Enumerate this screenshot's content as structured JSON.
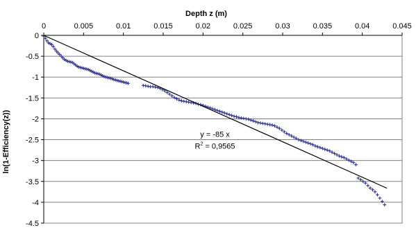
{
  "chart_data": {
    "type": "scatter",
    "title": "",
    "xlabel": "Depth z (m)",
    "ylabel": "ln(1-Efficiency(z))",
    "xlim": [
      0,
      0.045
    ],
    "ylim": [
      -4.5,
      0
    ],
    "x_ticks": [
      0,
      0.005,
      0.01,
      0.015,
      0.02,
      0.025,
      0.03,
      0.035,
      0.04,
      0.045
    ],
    "x_tick_labels": [
      "0",
      "0.005",
      "0.01",
      "0.015",
      "0.02",
      "0.025",
      "0.03",
      "0.035",
      "0.04",
      "0.045"
    ],
    "y_ticks": [
      0,
      -0.5,
      -1,
      -1.5,
      -2,
      -2.5,
      -3,
      -3.5,
      -4,
      -4.5
    ],
    "y_tick_labels": [
      "0",
      "-0.5",
      "-1",
      "-1.5",
      "-2",
      "-2.5",
      "-3",
      "-3.5",
      "-4",
      "-4.5"
    ],
    "x_axis_position": "top",
    "grid": "horizontal",
    "legend": "none",
    "colors": {
      "points": "#2a2f8f",
      "trendline": "#000000",
      "grid": "#808080"
    },
    "series": [
      {
        "marker": "plus",
        "points": [
          [
            0.0,
            -0.02
          ],
          [
            0.0002,
            -0.07
          ],
          [
            0.0004,
            -0.13
          ],
          [
            0.0006,
            -0.18
          ],
          [
            0.0008,
            -0.2
          ],
          [
            0.001,
            -0.22
          ],
          [
            0.0012,
            -0.27
          ],
          [
            0.0014,
            -0.33
          ],
          [
            0.0016,
            -0.38
          ],
          [
            0.0018,
            -0.42
          ],
          [
            0.002,
            -0.46
          ],
          [
            0.0022,
            -0.5
          ],
          [
            0.0024,
            -0.54
          ],
          [
            0.0026,
            -0.58
          ],
          [
            0.0028,
            -0.6
          ],
          [
            0.003,
            -0.62
          ],
          [
            0.0032,
            -0.63
          ],
          [
            0.0034,
            -0.64
          ],
          [
            0.0036,
            -0.65
          ],
          [
            0.0038,
            -0.68
          ],
          [
            0.004,
            -0.71
          ],
          [
            0.0042,
            -0.74
          ],
          [
            0.0044,
            -0.76
          ],
          [
            0.0046,
            -0.77
          ],
          [
            0.0048,
            -0.78
          ],
          [
            0.005,
            -0.79
          ],
          [
            0.0052,
            -0.8
          ],
          [
            0.0054,
            -0.81
          ],
          [
            0.0056,
            -0.82
          ],
          [
            0.0058,
            -0.84
          ],
          [
            0.006,
            -0.86
          ],
          [
            0.0062,
            -0.88
          ],
          [
            0.0064,
            -0.9
          ],
          [
            0.0066,
            -0.91
          ],
          [
            0.0068,
            -0.92
          ],
          [
            0.007,
            -0.93
          ],
          [
            0.0072,
            -0.95
          ],
          [
            0.0074,
            -0.97
          ],
          [
            0.0076,
            -0.99
          ],
          [
            0.0078,
            -1.0
          ],
          [
            0.008,
            -1.01
          ],
          [
            0.0082,
            -1.02
          ],
          [
            0.0084,
            -1.03
          ],
          [
            0.0086,
            -1.04
          ],
          [
            0.0088,
            -1.06
          ],
          [
            0.009,
            -1.07
          ],
          [
            0.0092,
            -1.08
          ],
          [
            0.0094,
            -1.09
          ],
          [
            0.0096,
            -1.1
          ],
          [
            0.0098,
            -1.11
          ],
          [
            0.01,
            -1.12
          ],
          [
            0.0102,
            -1.13
          ],
          [
            0.0104,
            -1.14
          ],
          [
            0.0106,
            -1.15
          ],
          [
            0.0125,
            -1.2
          ],
          [
            0.0128,
            -1.21
          ],
          [
            0.0131,
            -1.22
          ],
          [
            0.0134,
            -1.23
          ],
          [
            0.0137,
            -1.23
          ],
          [
            0.014,
            -1.24
          ],
          [
            0.0143,
            -1.25
          ],
          [
            0.0146,
            -1.27
          ],
          [
            0.0149,
            -1.3
          ],
          [
            0.0152,
            -1.33
          ],
          [
            0.0155,
            -1.37
          ],
          [
            0.0158,
            -1.41
          ],
          [
            0.0161,
            -1.45
          ],
          [
            0.0164,
            -1.49
          ],
          [
            0.0167,
            -1.52
          ],
          [
            0.017,
            -1.55
          ],
          [
            0.0173,
            -1.57
          ],
          [
            0.0176,
            -1.58
          ],
          [
            0.0179,
            -1.59
          ],
          [
            0.0182,
            -1.6
          ],
          [
            0.0185,
            -1.61
          ],
          [
            0.0188,
            -1.62
          ],
          [
            0.0191,
            -1.63
          ],
          [
            0.0194,
            -1.65
          ],
          [
            0.0197,
            -1.66
          ],
          [
            0.02,
            -1.68
          ],
          [
            0.0203,
            -1.7
          ],
          [
            0.0206,
            -1.72
          ],
          [
            0.0209,
            -1.74
          ],
          [
            0.0212,
            -1.76
          ],
          [
            0.0215,
            -1.78
          ],
          [
            0.0218,
            -1.8
          ],
          [
            0.0221,
            -1.82
          ],
          [
            0.0224,
            -1.84
          ],
          [
            0.0227,
            -1.86
          ],
          [
            0.023,
            -1.88
          ],
          [
            0.0233,
            -1.9
          ],
          [
            0.0236,
            -1.92
          ],
          [
            0.0239,
            -1.94
          ],
          [
            0.0242,
            -1.95
          ],
          [
            0.0245,
            -1.97
          ],
          [
            0.0248,
            -1.98
          ],
          [
            0.0251,
            -1.99
          ],
          [
            0.0254,
            -2.0
          ],
          [
            0.0257,
            -2.01
          ],
          [
            0.026,
            -2.03
          ],
          [
            0.0263,
            -2.05
          ],
          [
            0.0266,
            -2.07
          ],
          [
            0.0269,
            -2.09
          ],
          [
            0.0272,
            -2.1
          ],
          [
            0.0275,
            -2.11
          ],
          [
            0.0278,
            -2.12
          ],
          [
            0.0281,
            -2.13
          ],
          [
            0.0284,
            -2.14
          ],
          [
            0.0287,
            -2.15
          ],
          [
            0.029,
            -2.17
          ],
          [
            0.0293,
            -2.2
          ],
          [
            0.0296,
            -2.23
          ],
          [
            0.0299,
            -2.27
          ],
          [
            0.0302,
            -2.31
          ],
          [
            0.0305,
            -2.35
          ],
          [
            0.0308,
            -2.38
          ],
          [
            0.0311,
            -2.41
          ],
          [
            0.0314,
            -2.44
          ],
          [
            0.0317,
            -2.47
          ],
          [
            0.032,
            -2.5
          ],
          [
            0.0323,
            -2.52
          ],
          [
            0.0326,
            -2.54
          ],
          [
            0.0329,
            -2.56
          ],
          [
            0.0332,
            -2.58
          ],
          [
            0.0335,
            -2.6
          ],
          [
            0.0338,
            -2.62
          ],
          [
            0.0341,
            -2.65
          ],
          [
            0.0344,
            -2.67
          ],
          [
            0.0347,
            -2.69
          ],
          [
            0.035,
            -2.71
          ],
          [
            0.0353,
            -2.73
          ],
          [
            0.0356,
            -2.75
          ],
          [
            0.0359,
            -2.77
          ],
          [
            0.0362,
            -2.8
          ],
          [
            0.0365,
            -2.83
          ],
          [
            0.0368,
            -2.86
          ],
          [
            0.0371,
            -2.89
          ],
          [
            0.0374,
            -2.91
          ],
          [
            0.0377,
            -2.93
          ],
          [
            0.038,
            -2.96
          ],
          [
            0.0383,
            -2.99
          ],
          [
            0.0386,
            -3.02
          ],
          [
            0.0389,
            -3.05
          ],
          [
            0.0392,
            -3.1
          ],
          [
            0.0395,
            -3.42
          ],
          [
            0.0398,
            -3.46
          ],
          [
            0.0401,
            -3.5
          ],
          [
            0.0404,
            -3.54
          ],
          [
            0.0407,
            -3.6
          ],
          [
            0.041,
            -3.66
          ],
          [
            0.0413,
            -3.7
          ],
          [
            0.0416,
            -3.75
          ],
          [
            0.0419,
            -3.82
          ],
          [
            0.0422,
            -3.9
          ],
          [
            0.0425,
            -3.98
          ],
          [
            0.0428,
            -4.06
          ]
        ]
      }
    ],
    "trendline": {
      "slope": -85,
      "intercept": 0,
      "x_range": [
        0,
        0.0431
      ]
    },
    "annotations": {
      "equation": "y = -85 x",
      "r_squared_prefix": "R",
      "r_squared_exponent": "2",
      "r_squared_value": " = 0,9565",
      "anchor": [
        0.0215,
        -2.6
      ]
    }
  }
}
